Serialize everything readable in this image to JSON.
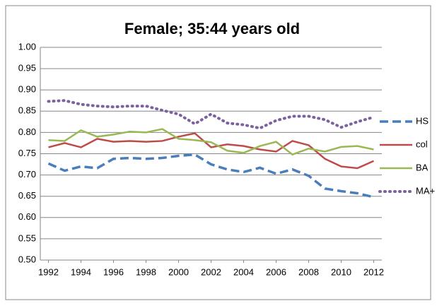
{
  "chart_data": {
    "type": "line",
    "title": "Female; 35:44 years old",
    "x": [
      1992,
      1993,
      1994,
      1995,
      1996,
      1997,
      1998,
      1999,
      2000,
      2001,
      2002,
      2003,
      2004,
      2005,
      2006,
      2007,
      2008,
      2009,
      2010,
      2011,
      2012
    ],
    "xlim": [
      1991.5,
      2012.5
    ],
    "xticks": [
      1992,
      1994,
      1996,
      1998,
      2000,
      2002,
      2004,
      2006,
      2008,
      2010,
      2012
    ],
    "ylim": [
      0.5,
      1.0
    ],
    "yticks": [
      {
        "value": 0.5,
        "label": "0.50"
      },
      {
        "value": 0.55,
        "label": "0.55"
      },
      {
        "value": 0.6,
        "label": "0.60"
      },
      {
        "value": 0.65,
        "label": "0.65"
      },
      {
        "value": 0.7,
        "label": "0.70"
      },
      {
        "value": 0.75,
        "label": "0.75"
      },
      {
        "value": 0.8,
        "label": "0.80"
      },
      {
        "value": 0.85,
        "label": "0.85"
      },
      {
        "value": 0.9,
        "label": "0.90"
      },
      {
        "value": 0.95,
        "label": "0.95"
      },
      {
        "value": 1.0,
        "label": "1.00"
      }
    ],
    "grid": true,
    "legend": "right",
    "series": [
      {
        "name": "HS",
        "color": "#4a7ebb",
        "style": "dashed",
        "values": [
          0.727,
          0.71,
          0.72,
          0.716,
          0.738,
          0.74,
          0.738,
          0.74,
          0.745,
          0.748,
          0.725,
          0.713,
          0.707,
          0.717,
          0.703,
          0.713,
          0.698,
          0.668,
          0.662,
          0.657,
          0.648
        ]
      },
      {
        "name": "col",
        "color": "#be4b48",
        "style": "solid",
        "values": [
          0.765,
          0.775,
          0.765,
          0.785,
          0.778,
          0.78,
          0.778,
          0.78,
          0.79,
          0.798,
          0.765,
          0.772,
          0.768,
          0.76,
          0.755,
          0.78,
          0.77,
          0.738,
          0.72,
          0.716,
          0.733
        ]
      },
      {
        "name": "BA",
        "color": "#98b954",
        "style": "solid",
        "values": [
          0.782,
          0.78,
          0.805,
          0.79,
          0.795,
          0.802,
          0.8,
          0.808,
          0.785,
          0.782,
          0.777,
          0.757,
          0.752,
          0.768,
          0.778,
          0.748,
          0.762,
          0.755,
          0.766,
          0.768,
          0.76
        ]
      },
      {
        "name": "MA+",
        "color": "#7d60a0",
        "style": "dotted",
        "values": [
          0.873,
          0.875,
          0.866,
          0.862,
          0.86,
          0.862,
          0.862,
          0.852,
          0.843,
          0.82,
          0.843,
          0.822,
          0.818,
          0.81,
          0.828,
          0.838,
          0.838,
          0.83,
          0.812,
          0.825,
          0.836
        ]
      }
    ]
  }
}
